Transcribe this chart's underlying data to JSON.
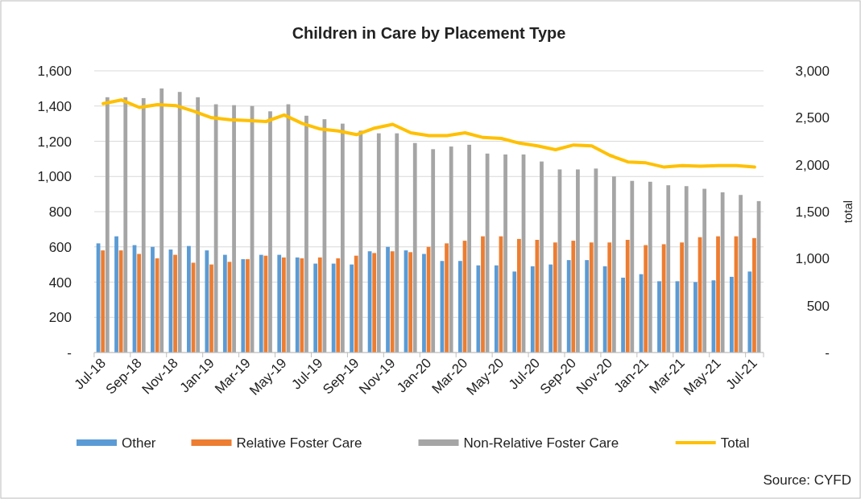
{
  "chart_data": {
    "type": "bar",
    "title": "Children in Care by Placement Type",
    "y2label": "total",
    "categories": [
      "Jul-18",
      null,
      "Sep-18",
      null,
      "Nov-18",
      null,
      "Jan-19",
      null,
      "Mar-19",
      null,
      "May-19",
      null,
      "Jul-19",
      null,
      "Sep-19",
      null,
      "Nov-19",
      null,
      "Jan-20",
      null,
      "Mar-20",
      null,
      "May-20",
      null,
      "Jul-20",
      null,
      "Sep-20",
      null,
      "Nov-20",
      null,
      "Jan-21",
      null,
      "Mar-21",
      null,
      "May-21",
      null,
      "Jul-21"
    ],
    "series": [
      {
        "name": "Other",
        "color": "#5b9bd5",
        "values": [
          620,
          660,
          610,
          600,
          585,
          605,
          580,
          555,
          530,
          555,
          555,
          540,
          505,
          505,
          500,
          575,
          600,
          580,
          560,
          520,
          520,
          495,
          495,
          460,
          490,
          500,
          525,
          525,
          490,
          425,
          445,
          405,
          405,
          400,
          410,
          430,
          460
        ]
      },
      {
        "name": "Relative Foster Care",
        "color": "#ed7d31",
        "values": [
          580,
          580,
          560,
          535,
          555,
          510,
          500,
          515,
          530,
          550,
          540,
          535,
          540,
          535,
          550,
          565,
          575,
          570,
          600,
          620,
          635,
          660,
          660,
          645,
          640,
          625,
          635,
          625,
          625,
          640,
          610,
          615,
          625,
          655,
          660,
          660,
          650
        ]
      },
      {
        "name": "Non-Relative Foster Care",
        "color": "#a5a5a5",
        "values": [
          1450,
          1450,
          1445,
          1500,
          1480,
          1450,
          1410,
          1405,
          1400,
          1370,
          1410,
          1345,
          1325,
          1300,
          1260,
          1245,
          1245,
          1190,
          1155,
          1170,
          1180,
          1130,
          1125,
          1125,
          1085,
          1040,
          1040,
          1045,
          1000,
          975,
          970,
          950,
          945,
          930,
          910,
          895,
          860
        ]
      },
      {
        "name": "Total",
        "type": "line",
        "axis": "y2",
        "color": "#ffc000",
        "values": [
          2650,
          2690,
          2610,
          2640,
          2630,
          2570,
          2500,
          2480,
          2470,
          2460,
          2530,
          2440,
          2380,
          2360,
          2320,
          2390,
          2430,
          2340,
          2310,
          2310,
          2340,
          2290,
          2280,
          2230,
          2200,
          2160,
          2210,
          2200,
          2100,
          2030,
          2020,
          1975,
          1990,
          1985,
          1990,
          1990,
          1975
        ]
      }
    ],
    "ylim": [
      0,
      1600
    ],
    "yticks": [
      {
        "value": 0,
        "label": "-"
      },
      {
        "value": 200,
        "label": "200"
      },
      {
        "value": 400,
        "label": "400"
      },
      {
        "value": 600,
        "label": "600"
      },
      {
        "value": 800,
        "label": "800"
      },
      {
        "value": 1000,
        "label": "1,000"
      },
      {
        "value": 1200,
        "label": "1,200"
      },
      {
        "value": 1400,
        "label": "1,400"
      },
      {
        "value": 1600,
        "label": "1,600"
      }
    ],
    "y2lim": [
      0,
      3000
    ],
    "y2ticks": [
      {
        "value": 0,
        "label": "-"
      },
      {
        "value": 500,
        "label": "500"
      },
      {
        "value": 1000,
        "label": "1,000"
      },
      {
        "value": 1500,
        "label": "1,500"
      },
      {
        "value": 2000,
        "label": "2,000"
      },
      {
        "value": 2500,
        "label": "2,500"
      },
      {
        "value": 3000,
        "label": "3,000"
      }
    ],
    "grid": "y",
    "legend": "bottom",
    "marker": "none",
    "line_style": "solid",
    "annotations": [
      "Source: CYFD"
    ]
  }
}
